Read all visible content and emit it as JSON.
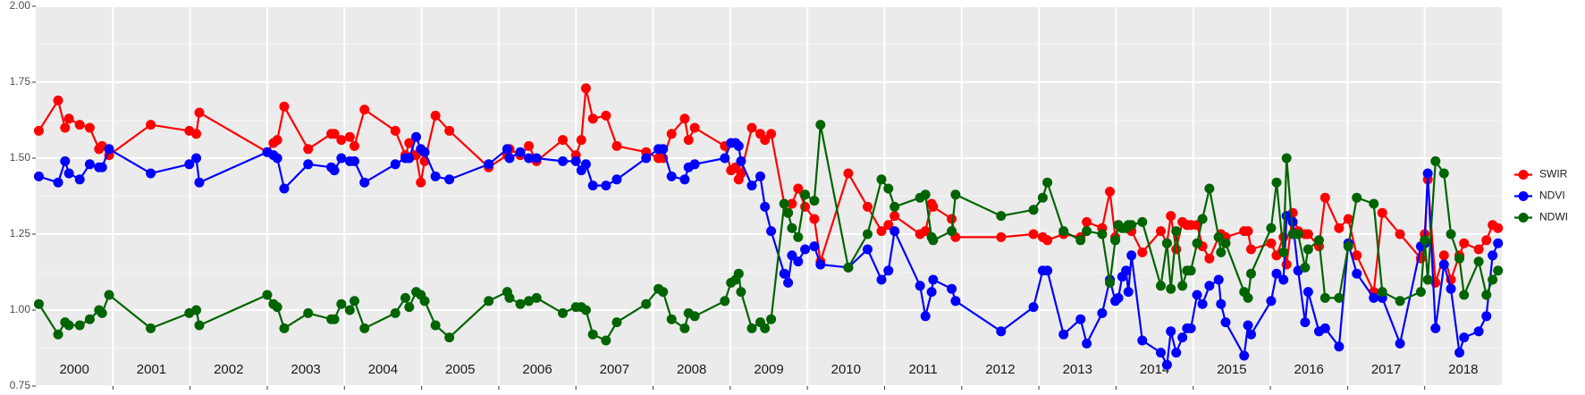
{
  "chart_data": {
    "type": "line",
    "x": [
      2000.04,
      2000.29,
      2000.38,
      2000.43,
      2000.57,
      2000.7,
      2000.82,
      2000.86,
      2000.95,
      2001.49,
      2001.99,
      2002.08,
      2002.12,
      2003.0,
      2003.08,
      2003.13,
      2003.22,
      2003.53,
      2003.83,
      2003.87,
      2003.96,
      2004.07,
      2004.13,
      2004.26,
      2004.66,
      2004.79,
      2004.84,
      2004.93,
      2004.99,
      2005.04,
      2005.18,
      2005.36,
      2005.87,
      2006.11,
      2006.14,
      2006.28,
      2006.39,
      2006.49,
      2006.83,
      2007.0,
      2007.07,
      2007.13,
      2007.22,
      2007.39,
      2007.53,
      2007.91,
      2008.07,
      2008.13,
      2008.24,
      2008.41,
      2008.46,
      2008.54,
      2008.93,
      2009.01,
      2009.07,
      2009.11,
      2009.14,
      2009.28,
      2009.39,
      2009.45,
      2009.53,
      2009.7,
      2009.75,
      2009.8,
      2009.88,
      2009.97,
      2010.09,
      2010.17,
      2010.53,
      2010.78,
      2010.96,
      2011.05,
      2011.13,
      2011.46,
      2011.53,
      2011.61,
      2011.63,
      2011.87,
      2011.92,
      2012.51,
      2012.93,
      2013.05,
      2013.11,
      2013.32,
      2013.54,
      2013.62,
      2013.82,
      2013.92,
      2013.99,
      2014.03,
      2014.08,
      2014.13,
      2014.16,
      2014.2,
      2014.34,
      2014.58,
      2014.66,
      2014.71,
      2014.78,
      2014.86,
      2014.92,
      2014.97,
      2015.05,
      2015.12,
      2015.21,
      2015.33,
      2015.36,
      2015.42,
      2015.66,
      2015.71,
      2015.75,
      2016.01,
      2016.08,
      2016.17,
      2016.21,
      2016.29,
      2016.36,
      2016.45,
      2016.49,
      2016.63,
      2016.71,
      2016.89,
      2017.01,
      2017.12,
      2017.34,
      2017.45,
      2017.68,
      2017.95,
      2018.0,
      2018.04,
      2018.14,
      2018.25,
      2018.34,
      2018.45,
      2018.51,
      2018.7,
      2018.8,
      2018.88,
      2018.95
    ],
    "series": [
      {
        "name": "SWIR",
        "color": "#ff0000",
        "values": [
          1.59,
          1.69,
          1.6,
          1.63,
          1.61,
          1.6,
          1.53,
          1.54,
          1.51,
          1.61,
          1.59,
          1.58,
          1.65,
          1.52,
          1.55,
          1.56,
          1.67,
          1.53,
          1.58,
          1.58,
          1.56,
          1.57,
          1.54,
          1.66,
          1.59,
          1.51,
          1.55,
          1.51,
          1.42,
          1.49,
          1.64,
          1.59,
          1.47,
          1.51,
          1.53,
          1.51,
          1.54,
          1.49,
          1.56,
          1.51,
          1.56,
          1.73,
          1.63,
          1.64,
          1.54,
          1.52,
          1.5,
          1.5,
          1.58,
          1.63,
          1.56,
          1.6,
          1.54,
          1.46,
          1.47,
          1.43,
          1.45,
          1.6,
          1.58,
          1.56,
          1.58,
          1.35,
          1.32,
          1.35,
          1.4,
          1.34,
          1.3,
          1.16,
          1.45,
          1.34,
          1.26,
          1.28,
          1.31,
          1.25,
          1.26,
          1.35,
          1.34,
          1.3,
          1.24,
          1.24,
          1.25,
          1.24,
          1.23,
          1.25,
          1.24,
          1.29,
          1.27,
          1.39,
          1.24,
          1.28,
          1.27,
          1.27,
          1.27,
          1.26,
          1.19,
          1.26,
          1.22,
          1.31,
          1.2,
          1.29,
          1.28,
          1.28,
          1.28,
          1.21,
          1.17,
          1.24,
          1.25,
          1.24,
          1.26,
          1.26,
          1.2,
          1.22,
          1.18,
          1.24,
          1.15,
          1.32,
          1.26,
          1.25,
          1.25,
          1.21,
          1.37,
          1.27,
          1.3,
          1.18,
          1.06,
          1.32,
          1.25,
          1.17,
          1.25,
          1.43,
          1.09,
          1.18,
          1.1,
          1.18,
          1.22,
          1.2,
          1.23,
          1.28,
          1.27
        ]
      },
      {
        "name": "NDVI",
        "color": "#0000ff",
        "values": [
          1.44,
          1.42,
          1.49,
          1.45,
          1.43,
          1.48,
          1.47,
          1.47,
          1.53,
          1.45,
          1.48,
          1.5,
          1.42,
          1.52,
          1.51,
          1.5,
          1.4,
          1.48,
          1.47,
          1.46,
          1.5,
          1.49,
          1.49,
          1.42,
          1.48,
          1.5,
          1.5,
          1.57,
          1.53,
          1.52,
          1.44,
          1.43,
          1.48,
          1.53,
          1.5,
          1.52,
          1.5,
          1.5,
          1.49,
          1.49,
          1.46,
          1.48,
          1.41,
          1.41,
          1.43,
          1.5,
          1.53,
          1.53,
          1.44,
          1.43,
          1.47,
          1.48,
          1.5,
          1.55,
          1.55,
          1.54,
          1.49,
          1.41,
          1.44,
          1.34,
          1.26,
          1.12,
          1.09,
          1.18,
          1.16,
          1.2,
          1.21,
          1.15,
          1.14,
          1.2,
          1.1,
          1.13,
          1.26,
          1.08,
          0.98,
          1.06,
          1.1,
          1.07,
          1.03,
          0.93,
          1.01,
          1.13,
          1.13,
          0.92,
          0.97,
          0.89,
          0.99,
          1.1,
          1.03,
          1.04,
          1.11,
          1.13,
          1.06,
          1.18,
          0.9,
          0.86,
          0.82,
          0.93,
          0.86,
          0.91,
          0.94,
          0.94,
          1.05,
          1.02,
          1.08,
          1.1,
          1.02,
          0.96,
          0.85,
          0.95,
          0.92,
          1.03,
          1.12,
          1.1,
          1.31,
          1.29,
          1.13,
          0.96,
          1.06,
          0.93,
          0.94,
          0.88,
          1.22,
          1.12,
          1.04,
          1.04,
          0.89,
          1.21,
          1.22,
          1.45,
          0.94,
          1.15,
          1.07,
          0.86,
          0.91,
          0.93,
          0.98,
          1.18,
          1.22
        ]
      },
      {
        "name": "NDWI",
        "color": "#006400",
        "values": [
          1.02,
          0.92,
          0.96,
          0.95,
          0.95,
          0.97,
          1.0,
          0.99,
          1.05,
          0.94,
          0.99,
          1.0,
          0.95,
          1.05,
          1.02,
          1.01,
          0.94,
          0.99,
          0.97,
          0.97,
          1.02,
          1.0,
          1.03,
          0.94,
          0.99,
          1.04,
          1.01,
          1.06,
          1.05,
          1.03,
          0.95,
          0.91,
          1.03,
          1.06,
          1.04,
          1.02,
          1.03,
          1.04,
          0.99,
          1.01,
          1.01,
          1.0,
          0.92,
          0.9,
          0.96,
          1.02,
          1.07,
          1.06,
          0.97,
          0.94,
          0.99,
          0.98,
          1.03,
          1.09,
          1.1,
          1.12,
          1.06,
          0.94,
          0.96,
          0.94,
          0.97,
          1.35,
          1.32,
          1.27,
          1.24,
          1.38,
          1.36,
          1.61,
          1.14,
          1.25,
          1.43,
          1.4,
          1.34,
          1.37,
          1.38,
          1.24,
          1.23,
          1.26,
          1.38,
          1.31,
          1.33,
          1.37,
          1.42,
          1.26,
          1.23,
          1.26,
          1.25,
          1.09,
          1.23,
          1.28,
          1.27,
          1.27,
          1.28,
          1.28,
          1.29,
          1.08,
          1.22,
          1.07,
          1.26,
          1.08,
          1.13,
          1.13,
          1.22,
          1.3,
          1.4,
          1.24,
          1.19,
          1.22,
          1.06,
          1.04,
          1.12,
          1.27,
          1.42,
          1.19,
          1.5,
          1.25,
          1.25,
          1.14,
          1.2,
          1.23,
          1.04,
          1.04,
          1.21,
          1.37,
          1.35,
          1.06,
          1.03,
          1.06,
          1.23,
          1.1,
          1.49,
          1.45,
          1.25,
          1.17,
          1.05,
          1.16,
          1.05,
          1.1,
          1.13
        ]
      }
    ],
    "xlim": [
      2000,
      2019
    ],
    "xticks": [
      2001,
      2002,
      2003,
      2004,
      2005,
      2006,
      2007,
      2008,
      2009,
      2010,
      2011,
      2012,
      2013,
      2014,
      2015,
      2016,
      2017,
      2018
    ],
    "year_labels": [
      2000,
      2001,
      2002,
      2003,
      2004,
      2005,
      2006,
      2007,
      2008,
      2009,
      2010,
      2011,
      2012,
      2013,
      2014,
      2015,
      2016,
      2017,
      2018
    ],
    "ylim": [
      0.75,
      2.0
    ],
    "yticks": [
      {
        "value": 0.75,
        "label": "0.75"
      },
      {
        "value": 1.0,
        "label": "1.00"
      },
      {
        "value": 1.25,
        "label": "1.25"
      },
      {
        "value": 1.5,
        "label": "1.50"
      },
      {
        "value": 1.75,
        "label": "1.75"
      },
      {
        "value": 2.0,
        "label": "2.00"
      }
    ],
    "yminor": [
      0.875,
      1.125,
      1.375,
      1.625,
      1.875
    ],
    "grid": true,
    "legend": "right"
  }
}
